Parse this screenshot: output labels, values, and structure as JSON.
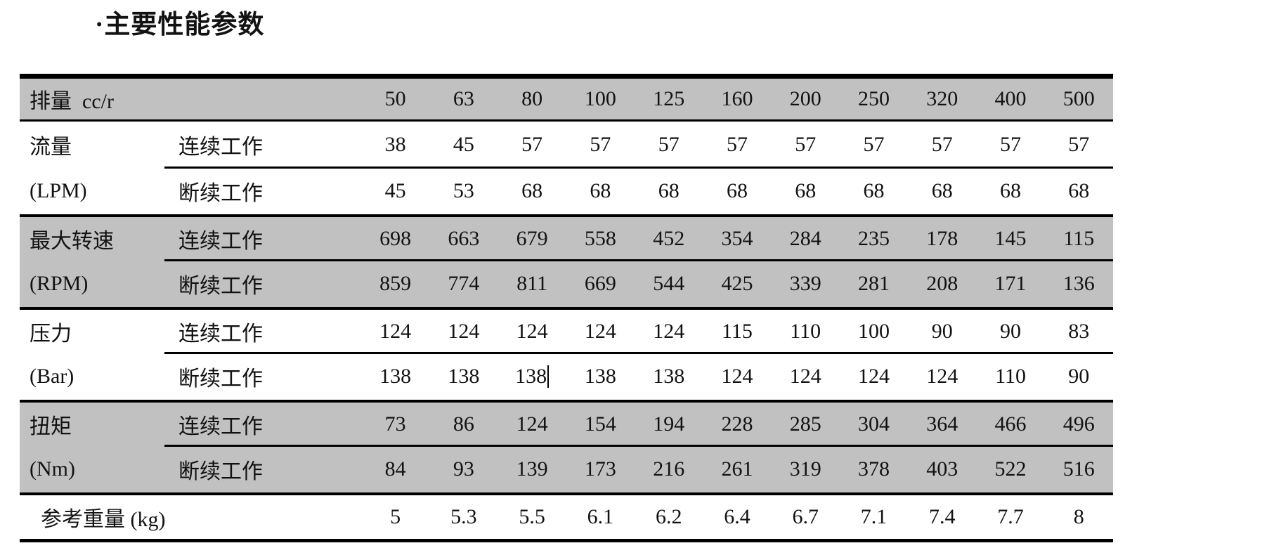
{
  "title": "·主要性能参数",
  "colors": {
    "row_shade": "#c1c1c1",
    "line": "#000000",
    "background": "#ffffff",
    "text": "#121212"
  },
  "table": {
    "header": {
      "label": "排量  cc/r",
      "values": [
        "50",
        "63",
        "80",
        "100",
        "125",
        "160",
        "200",
        "250",
        "320",
        "400",
        "500"
      ]
    },
    "sections": [
      {
        "name": "流量",
        "unit": "(LPM)",
        "shaded": false,
        "rows": [
          {
            "mode": "连续工作",
            "values": [
              "38",
              "45",
              "57",
              "57",
              "57",
              "57",
              "57",
              "57",
              "57",
              "57",
              "57"
            ]
          },
          {
            "mode": "断续工作",
            "values": [
              "45",
              "53",
              "68",
              "68",
              "68",
              "68",
              "68",
              "68",
              "68",
              "68",
              "68"
            ]
          }
        ]
      },
      {
        "name": "最大转速",
        "unit": "(RPM)",
        "shaded": true,
        "rows": [
          {
            "mode": "连续工作",
            "values": [
              "698",
              "663",
              "679",
              "558",
              "452",
              "354",
              "284",
              "235",
              "178",
              "145",
              "115"
            ]
          },
          {
            "mode": "断续工作",
            "values": [
              "859",
              "774",
              "811",
              "669",
              "544",
              "425",
              "339",
              "281",
              "208",
              "171",
              "136"
            ]
          }
        ]
      },
      {
        "name": "压力",
        "unit": "(Bar)",
        "shaded": false,
        "rows": [
          {
            "mode": "连续工作",
            "values": [
              "124",
              "124",
              "124",
              "124",
              "124",
              "115",
              "110",
              "100",
              "90",
              "90",
              "83"
            ]
          },
          {
            "mode": "断续工作",
            "values": [
              "138",
              "138",
              "138",
              "138",
              "138",
              "124",
              "124",
              "124",
              "124",
              "110",
              "90"
            ],
            "cursor_after_col": 2
          }
        ]
      },
      {
        "name": "扭矩",
        "unit": "(Nm)",
        "shaded": true,
        "rows": [
          {
            "mode": "连续工作",
            "values": [
              "73",
              "86",
              "124",
              "154",
              "194",
              "228",
              "285",
              "304",
              "364",
              "466",
              "496"
            ]
          },
          {
            "mode": "断续工作",
            "values": [
              "84",
              "93",
              "139",
              "173",
              "216",
              "261",
              "319",
              "378",
              "403",
              "522",
              "516"
            ]
          }
        ]
      }
    ],
    "footer": {
      "label": "参考重量 (kg)",
      "values": [
        "5",
        "5.3",
        "5.5",
        "6.1",
        "6.2",
        "6.4",
        "6.7",
        "7.1",
        "7.4",
        "7.7",
        "8"
      ]
    }
  },
  "chart_data": {
    "type": "table",
    "title": "主要性能参数",
    "columns": [
      "排量 cc/r",
      50,
      63,
      80,
      100,
      125,
      160,
      200,
      250,
      320,
      400,
      500
    ],
    "rows": [
      {
        "parameter": "流量 (LPM)",
        "mode": "连续工作",
        "values": [
          38,
          45,
          57,
          57,
          57,
          57,
          57,
          57,
          57,
          57,
          57
        ]
      },
      {
        "parameter": "流量 (LPM)",
        "mode": "断续工作",
        "values": [
          45,
          53,
          68,
          68,
          68,
          68,
          68,
          68,
          68,
          68,
          68
        ]
      },
      {
        "parameter": "最大转速 (RPM)",
        "mode": "连续工作",
        "values": [
          698,
          663,
          679,
          558,
          452,
          354,
          284,
          235,
          178,
          145,
          115
        ]
      },
      {
        "parameter": "最大转速 (RPM)",
        "mode": "断续工作",
        "values": [
          859,
          774,
          811,
          669,
          544,
          425,
          339,
          281,
          208,
          171,
          136
        ]
      },
      {
        "parameter": "压力 (Bar)",
        "mode": "连续工作",
        "values": [
          124,
          124,
          124,
          124,
          124,
          115,
          110,
          100,
          90,
          90,
          83
        ]
      },
      {
        "parameter": "压力 (Bar)",
        "mode": "断续工作",
        "values": [
          138,
          138,
          138,
          138,
          138,
          124,
          124,
          124,
          124,
          110,
          90
        ]
      },
      {
        "parameter": "扭矩 (Nm)",
        "mode": "连续工作",
        "values": [
          73,
          86,
          124,
          154,
          194,
          228,
          285,
          304,
          364,
          466,
          496
        ]
      },
      {
        "parameter": "扭矩 (Nm)",
        "mode": "断续工作",
        "values": [
          84,
          93,
          139,
          173,
          216,
          261,
          319,
          378,
          403,
          522,
          516
        ]
      },
      {
        "parameter": "参考重量 (kg)",
        "mode": "",
        "values": [
          5,
          5.3,
          5.5,
          6.1,
          6.2,
          6.4,
          6.7,
          7.1,
          7.4,
          7.7,
          8
        ]
      }
    ]
  }
}
